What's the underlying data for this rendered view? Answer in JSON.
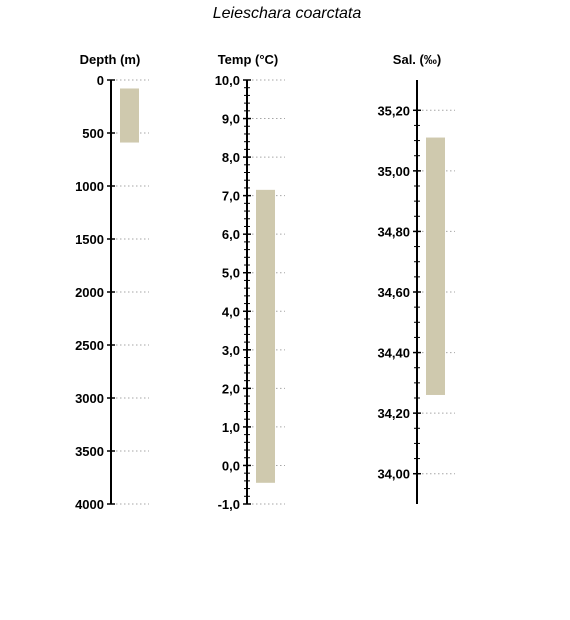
{
  "chart_data": {
    "type": "bar",
    "title": "Leieschara coarctata",
    "colors": {
      "range_fill": "#CFC9AE",
      "axis": "#000000",
      "gridline": "#a6a6a6"
    },
    "panels": [
      {
        "id": "depth",
        "title": "Depth (m)",
        "axis_inverted": true,
        "ylim": [
          0,
          4000
        ],
        "ticks": [
          "0",
          "500",
          "1000",
          "1500",
          "2000",
          "2500",
          "3000",
          "3500",
          "4000"
        ],
        "tick_values": [
          0,
          500,
          1000,
          1500,
          2000,
          2500,
          3000,
          3500,
          4000
        ],
        "minor_ticks": 0,
        "range": [
          80,
          590
        ]
      },
      {
        "id": "temp",
        "title": "Temp (°C)",
        "axis_inverted": false,
        "ylim": [
          -1,
          10
        ],
        "ticks": [
          "-1,0",
          "0,0",
          "1,0",
          "2,0",
          "3,0",
          "4,0",
          "5,0",
          "6,0",
          "7,0",
          "8,0",
          "9,0",
          "10,0"
        ],
        "tick_values": [
          -1,
          0,
          1,
          2,
          3,
          4,
          5,
          6,
          7,
          8,
          9,
          10
        ],
        "minor_ticks": 4,
        "range": [
          -0.45,
          7.15
        ]
      },
      {
        "id": "sal",
        "title": "Sal. (‰)",
        "axis_inverted": false,
        "ylim": [
          33.9,
          35.3
        ],
        "ticks": [
          "34,00",
          "34,20",
          "34,40",
          "34,60",
          "34,80",
          "35,00",
          "35,20"
        ],
        "tick_values": [
          34.0,
          34.2,
          34.4,
          34.6,
          34.8,
          35.0,
          35.2
        ],
        "minor_ticks": 3,
        "range": [
          34.26,
          35.11
        ]
      }
    ]
  }
}
